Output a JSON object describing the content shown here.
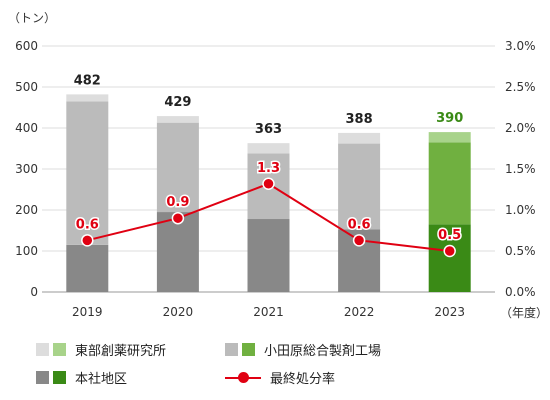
{
  "chart_data": {
    "type": "bar",
    "stacked": true,
    "categories": [
      "2019",
      "2020",
      "2021",
      "2022",
      "2023"
    ],
    "y_left_unit": "（トン）",
    "x_unit": "（年度）",
    "ylim": [
      0,
      600
    ],
    "y_ticks": [
      "0",
      "100",
      "200",
      "300",
      "400",
      "500",
      "600"
    ],
    "y2lim": [
      0,
      3.0
    ],
    "y2_ticks": [
      "0.0%",
      "0.5%",
      "1.0%",
      "1.5%",
      "2.0%",
      "2.5%",
      "3.0%"
    ],
    "grid": true,
    "totals": [
      "482",
      "429",
      "363",
      "388",
      "390"
    ],
    "series": [
      {
        "name": "本社地区",
        "values": [
          115,
          195,
          178,
          153,
          165
        ],
        "colors": [
          "#888888",
          "#888888",
          "#888888",
          "#888888",
          "#3a8a16"
        ]
      },
      {
        "name": "小田原総合製剤工場",
        "values": [
          350,
          218,
          160,
          209,
          200
        ],
        "colors": [
          "#bbbbbb",
          "#bbbbbb",
          "#bbbbbb",
          "#bbbbbb",
          "#70b040"
        ]
      },
      {
        "name": "東部創薬研究所",
        "values": [
          17,
          16,
          25,
          26,
          25
        ],
        "colors": [
          "#dddddd",
          "#dddddd",
          "#dddddd",
          "#dddddd",
          "#a8d38a"
        ]
      }
    ],
    "line": {
      "name": "最終処分率",
      "values": [
        0.63,
        0.9,
        1.32,
        0.63,
        0.5
      ],
      "labels": [
        "0.6",
        "0.9",
        "1.3",
        "0.6",
        "0.5"
      ],
      "color": "#e00012"
    },
    "highlight_total_color": "#3a8a16"
  },
  "legend": {
    "tobu": "東部創薬研究所",
    "odawara": "小田原総合製剤工場",
    "honsha": "本社地区",
    "rate": "最終処分率"
  }
}
